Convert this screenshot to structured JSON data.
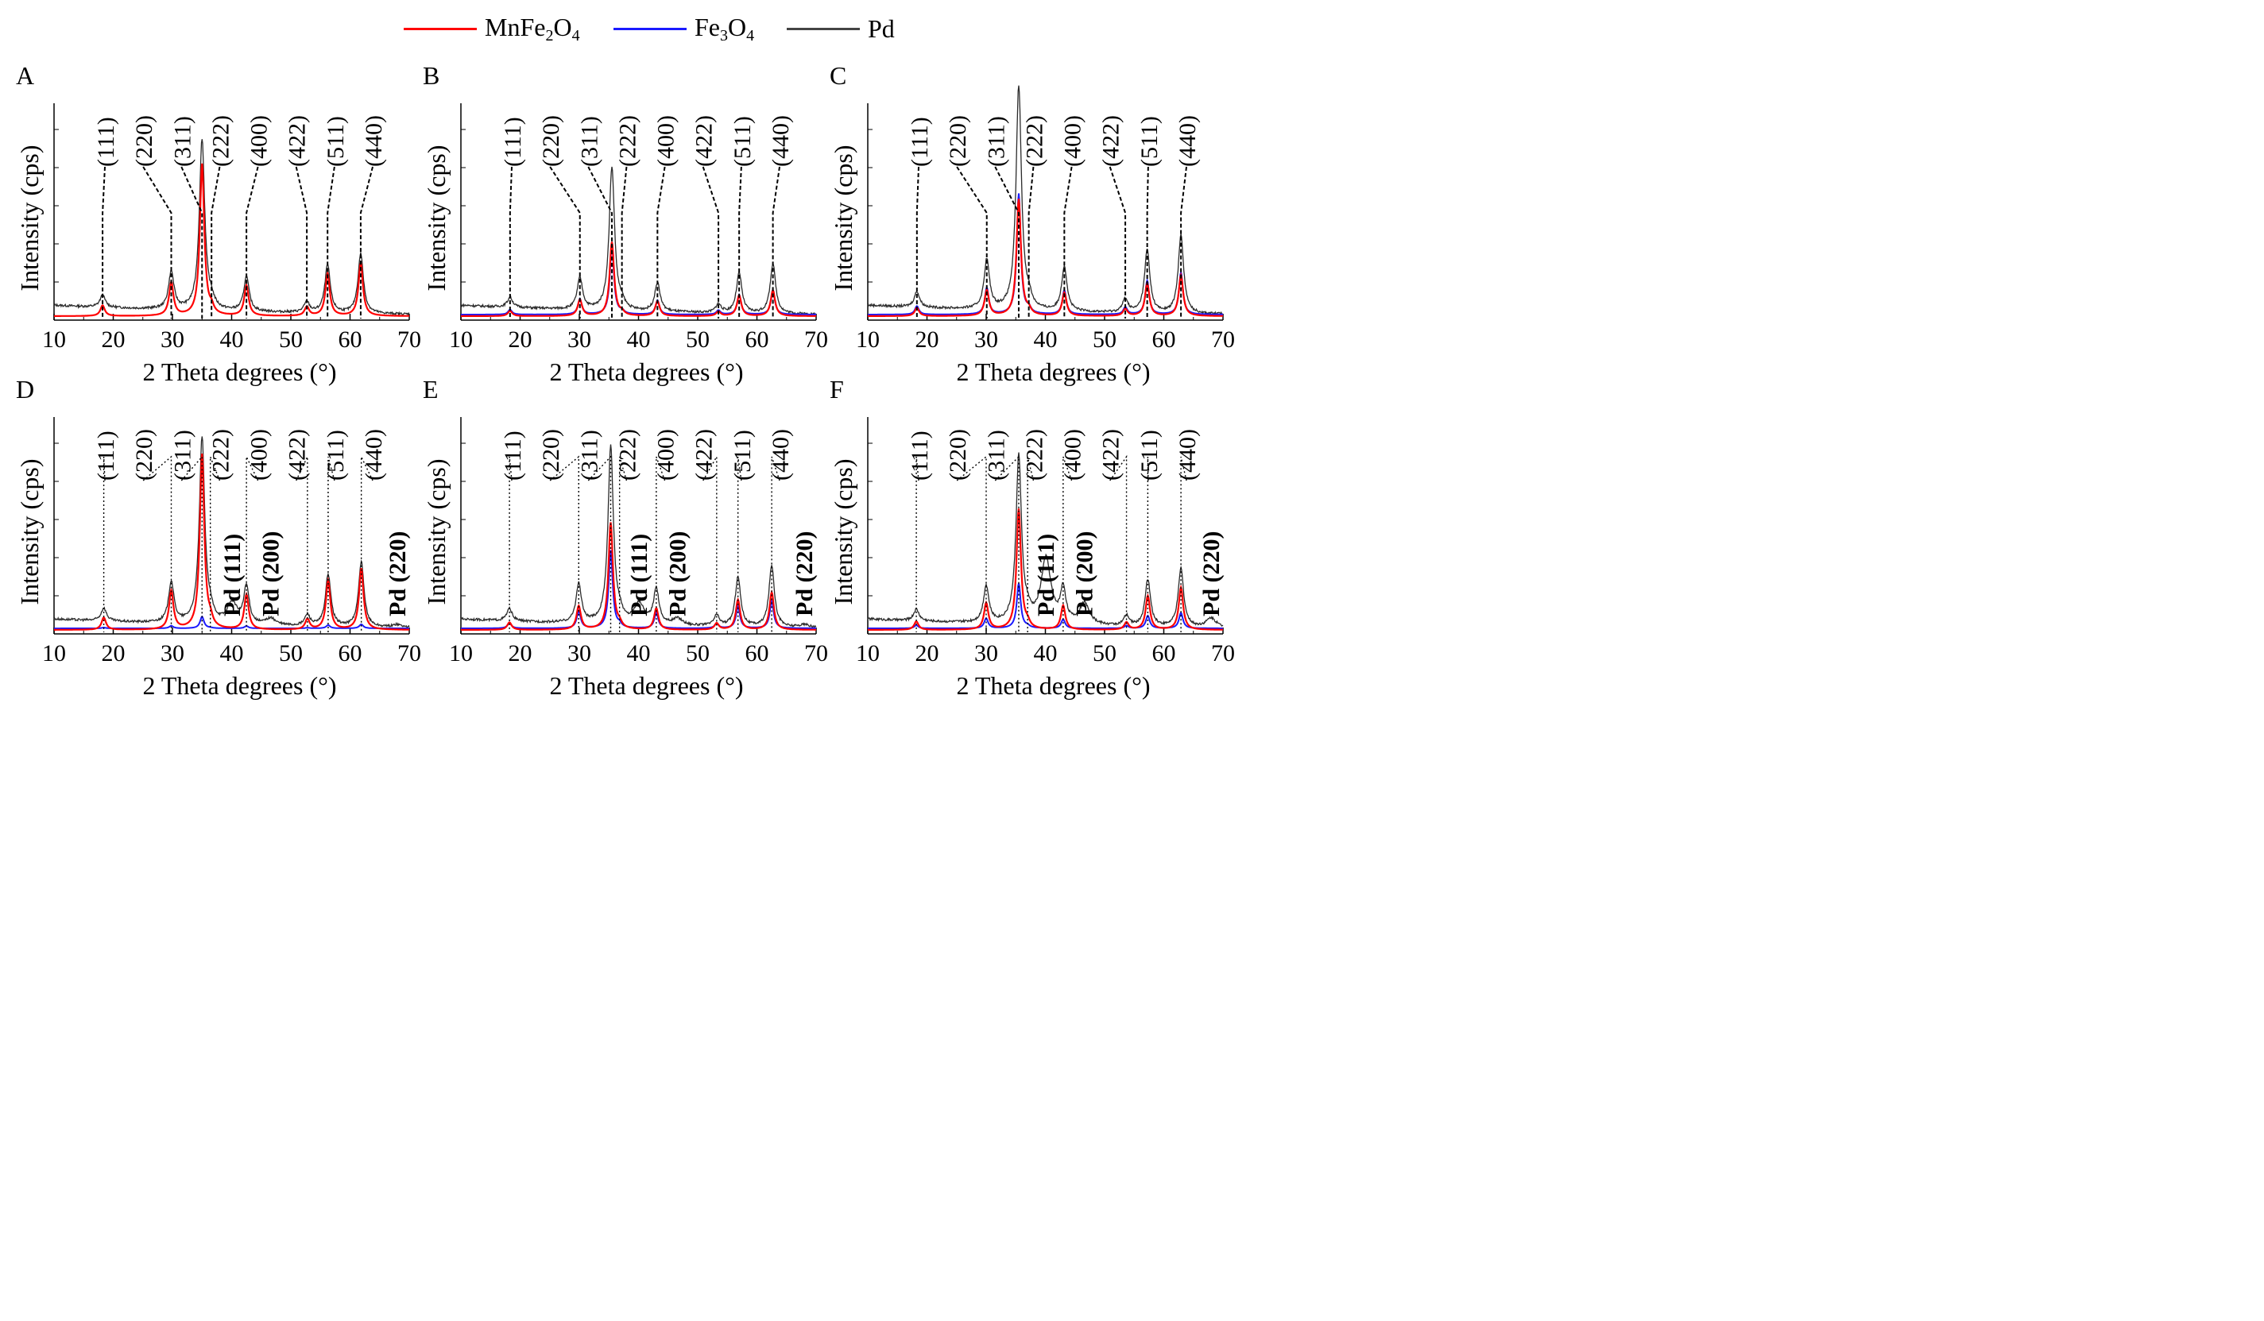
{
  "legend": [
    {
      "label": "MnFe2O4",
      "base": "MnFe",
      "sub1": "2",
      "mid": "O",
      "sub2": "4",
      "color": "#ff0000"
    },
    {
      "label": "Fe3O4",
      "base": "Fe",
      "sub1": "3",
      "mid": "O",
      "sub2": "4",
      "color": "#1a1aff"
    },
    {
      "label": "Pd",
      "base": "Pd",
      "sub1": "",
      "mid": "",
      "sub2": "",
      "color": "#444444"
    }
  ],
  "chart_data": [
    {
      "type": "line",
      "panel_label": "A",
      "xlabel": "2 Theta degrees (°)",
      "ylabel": "Intensity (cps)",
      "xlim": [
        10,
        70
      ],
      "xticks": [
        10,
        20,
        30,
        40,
        50,
        60,
        70
      ],
      "legend": "top",
      "series_present": [
        "MnFe2O4",
        "Pd"
      ],
      "peaks": [
        {
          "hkl": "(111)",
          "x": 18.2
        },
        {
          "hkl": "(220)",
          "x": 29.8
        },
        {
          "hkl": "(311)",
          "x": 35.0
        },
        {
          "hkl": "(222)",
          "x": 36.6
        },
        {
          "hkl": "(400)",
          "x": 42.5
        },
        {
          "hkl": "(422)",
          "x": 52.7
        },
        {
          "hkl": "(511)",
          "x": 56.2
        },
        {
          "hkl": "(440)",
          "x": 61.8
        }
      ],
      "pd_peaks": []
    },
    {
      "type": "line",
      "panel_label": "B",
      "xlabel": "2 Theta degrees (°)",
      "ylabel": "Intensity (cps)",
      "xlim": [
        10,
        70
      ],
      "xticks": [
        10,
        20,
        30,
        40,
        50,
        60,
        70
      ],
      "legend": "top",
      "series_present": [
        "MnFe2O4",
        "Fe3O4",
        "Pd"
      ],
      "peaks": [
        {
          "hkl": "(111)",
          "x": 18.3
        },
        {
          "hkl": "(220)",
          "x": 30.1
        },
        {
          "hkl": "(311)",
          "x": 35.5
        },
        {
          "hkl": "(222)",
          "x": 37.2
        },
        {
          "hkl": "(400)",
          "x": 43.2
        },
        {
          "hkl": "(422)",
          "x": 53.5
        },
        {
          "hkl": "(511)",
          "x": 57.0
        },
        {
          "hkl": "(440)",
          "x": 62.7
        }
      ],
      "pd_peaks": []
    },
    {
      "type": "line",
      "panel_label": "C",
      "xlabel": "2 Theta degrees (°)",
      "ylabel": "Intensity (cps)",
      "xlim": [
        10,
        70
      ],
      "xticks": [
        10,
        20,
        30,
        40,
        50,
        60,
        70
      ],
      "legend": "top",
      "series_present": [
        "MnFe2O4",
        "Fe3O4",
        "Pd"
      ],
      "peaks": [
        {
          "hkl": "(111)",
          "x": 18.3
        },
        {
          "hkl": "(220)",
          "x": 30.1
        },
        {
          "hkl": "(311)",
          "x": 35.5
        },
        {
          "hkl": "(222)",
          "x": 37.2
        },
        {
          "hkl": "(400)",
          "x": 43.2
        },
        {
          "hkl": "(422)",
          "x": 53.5
        },
        {
          "hkl": "(511)",
          "x": 57.2
        },
        {
          "hkl": "(440)",
          "x": 62.9
        }
      ],
      "pd_peaks": []
    },
    {
      "type": "line",
      "panel_label": "D",
      "xlabel": "2 Theta degrees (°)",
      "ylabel": "Intensity (cps)",
      "xlim": [
        10,
        70
      ],
      "xticks": [
        10,
        20,
        30,
        40,
        50,
        60,
        70
      ],
      "legend": "top",
      "series_present": [
        "MnFe2O4",
        "Fe3O4",
        "Pd"
      ],
      "peaks": [
        {
          "hkl": "(111)",
          "x": 18.4
        },
        {
          "hkl": "(220)",
          "x": 29.8
        },
        {
          "hkl": "(311)",
          "x": 35.0
        },
        {
          "hkl": "(222)",
          "x": 36.4
        },
        {
          "hkl": "(400)",
          "x": 42.5
        },
        {
          "hkl": "(422)",
          "x": 52.8
        },
        {
          "hkl": "(511)",
          "x": 56.3
        },
        {
          "hkl": "(440)",
          "x": 61.9
        }
      ],
      "pd_peaks": [
        {
          "label": "Pd (111)",
          "x": 40.1
        },
        {
          "label": "Pd (200)",
          "x": 46.6
        },
        {
          "label": "Pd (220)",
          "x": 68.0
        }
      ]
    },
    {
      "type": "line",
      "panel_label": "E",
      "xlabel": "2 Theta degrees (°)",
      "ylabel": "Intensity (cps)",
      "xlim": [
        10,
        70
      ],
      "xticks": [
        10,
        20,
        30,
        40,
        50,
        60,
        70
      ],
      "legend": "top",
      "series_present": [
        "MnFe2O4",
        "Fe3O4",
        "Pd"
      ],
      "peaks": [
        {
          "hkl": "(111)",
          "x": 18.2
        },
        {
          "hkl": "(220)",
          "x": 29.9
        },
        {
          "hkl": "(311)",
          "x": 35.3
        },
        {
          "hkl": "(222)",
          "x": 36.8
        },
        {
          "hkl": "(400)",
          "x": 43.0
        },
        {
          "hkl": "(422)",
          "x": 53.2
        },
        {
          "hkl": "(511)",
          "x": 56.8
        },
        {
          "hkl": "(440)",
          "x": 62.5
        }
      ],
      "pd_peaks": [
        {
          "label": "Pd (111)",
          "x": 40.1
        },
        {
          "label": "Pd (200)",
          "x": 46.6
        },
        {
          "label": "Pd (220)",
          "x": 68.0
        }
      ]
    },
    {
      "type": "line",
      "panel_label": "F",
      "xlabel": "2 Theta degrees (°)",
      "ylabel": "Intensity (cps)",
      "xlim": [
        10,
        70
      ],
      "xticks": [
        10,
        20,
        30,
        40,
        50,
        60,
        70
      ],
      "legend": "top",
      "series_present": [
        "MnFe2O4",
        "Fe3O4",
        "Pd"
      ],
      "peaks": [
        {
          "hkl": "(111)",
          "x": 18.2
        },
        {
          "hkl": "(220)",
          "x": 30.0
        },
        {
          "hkl": "(311)",
          "x": 35.5
        },
        {
          "hkl": "(222)",
          "x": 37.0
        },
        {
          "hkl": "(400)",
          "x": 43.0
        },
        {
          "hkl": "(422)",
          "x": 53.7
        },
        {
          "hkl": "(511)",
          "x": 57.3
        },
        {
          "hkl": "(440)",
          "x": 62.9
        }
      ],
      "pd_peaks": [
        {
          "label": "Pd (111)",
          "x": 40.1
        },
        {
          "label": "Pd (200)",
          "x": 46.6
        },
        {
          "label": "Pd (220)",
          "x": 68.0
        }
      ]
    }
  ]
}
